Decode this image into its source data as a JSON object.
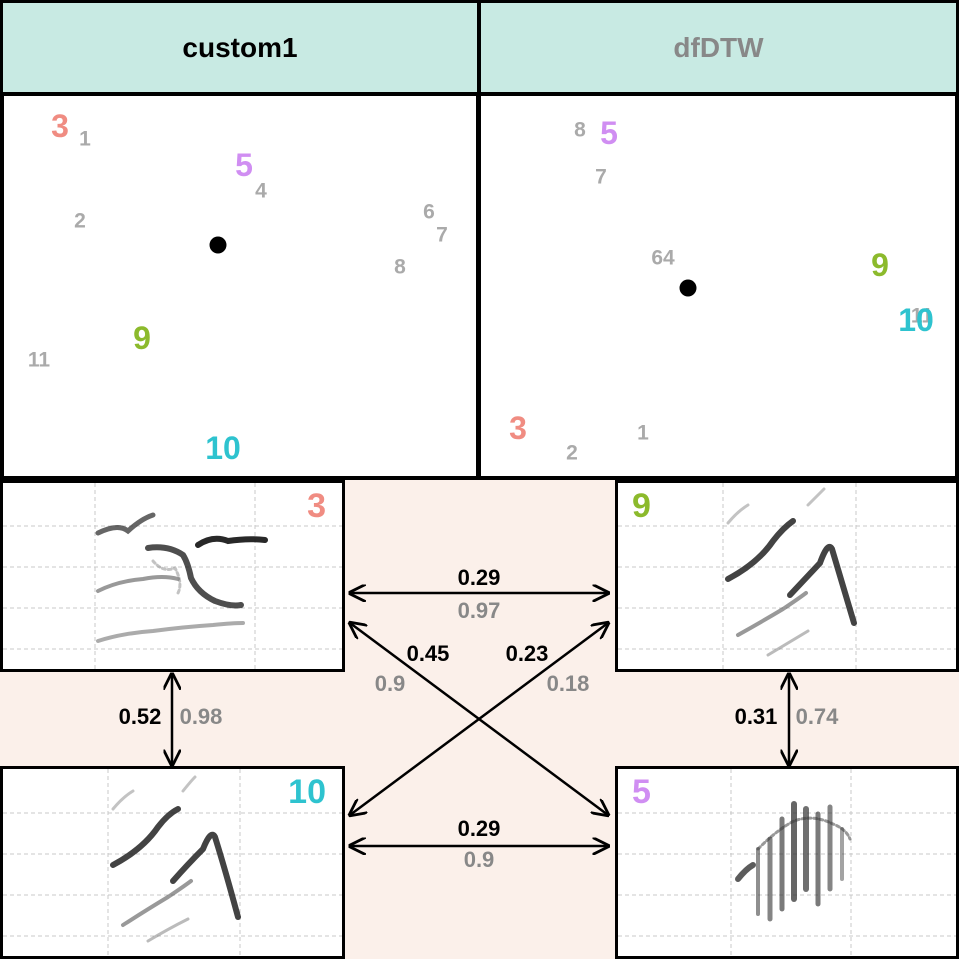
{
  "colors": {
    "header_bg": "#c8eae3",
    "band_bg": "#fbf0ea",
    "gray_label": "#aaaaaa",
    "custom1_title": "#000000",
    "dfdtw_title": "#888888",
    "sim_primary": "#000000",
    "sim_secondary": "#888888",
    "id_3": "#f08c82",
    "id_5": "#d08ef2",
    "id_9": "#8cba2c",
    "id_10": "#2ec3cf"
  },
  "headers": {
    "left": "custom1",
    "right": "dfDTW"
  },
  "scatter_left": {
    "highlighted": [
      {
        "id": "3",
        "color": "#f08c82"
      },
      {
        "id": "5",
        "color": "#d08ef2"
      },
      {
        "id": "9",
        "color": "#8cba2c"
      },
      {
        "id": "10",
        "color": "#2ec3cf"
      }
    ],
    "others": [
      "1",
      "4",
      "2",
      "6",
      "7",
      "8",
      "11"
    ]
  },
  "scatter_right": {
    "highlighted": [
      {
        "id": "5",
        "color": "#d08ef2"
      },
      {
        "id": "9",
        "color": "#8cba2c"
      },
      {
        "id": "10",
        "color": "#2ec3cf"
      },
      {
        "id": "3",
        "color": "#f08c82"
      }
    ],
    "others": [
      "8",
      "7",
      "64",
      "11",
      "1",
      "2"
    ]
  },
  "spectrograms": {
    "top_left": "3",
    "bottom_left": "10",
    "top_right": "9",
    "bottom_right": "5"
  },
  "similarities": {
    "3_9": {
      "custom1": "0.29",
      "dfdtw": "0.97"
    },
    "3_5": {
      "custom1": "0.45",
      "dfdtw": "0.9"
    },
    "10_9": {
      "custom1": "0.23",
      "dfdtw": "0.18"
    },
    "3_10": {
      "custom1": "0.52",
      "dfdtw": "0.98"
    },
    "9_5": {
      "custom1": "0.31",
      "dfdtw": "0.74"
    },
    "10_5": {
      "custom1": "0.29",
      "dfdtw": "0.9"
    }
  }
}
